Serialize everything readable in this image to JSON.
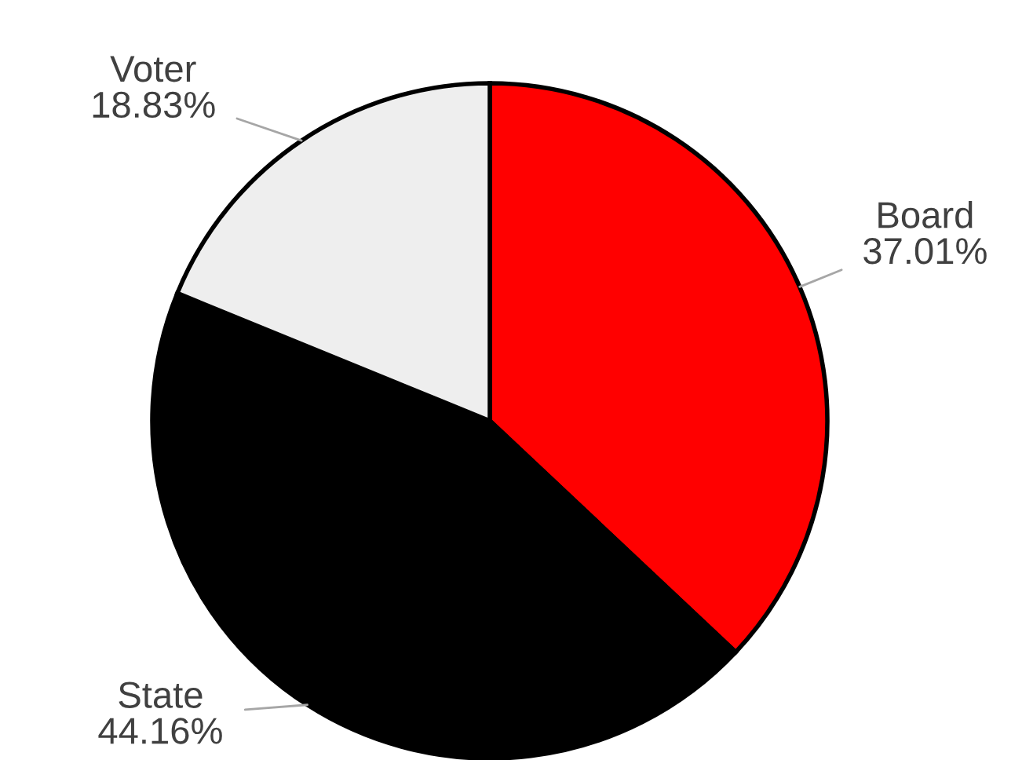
{
  "chart_data": {
    "type": "pie",
    "categories": [
      "Board",
      "State",
      "Voter"
    ],
    "values": [
      37.01,
      44.16,
      18.83
    ],
    "value_labels": [
      "37.01%",
      "44.16%",
      "18.83%"
    ],
    "colors": [
      "#ff0000",
      "#000000",
      "#eeeeee"
    ]
  }
}
